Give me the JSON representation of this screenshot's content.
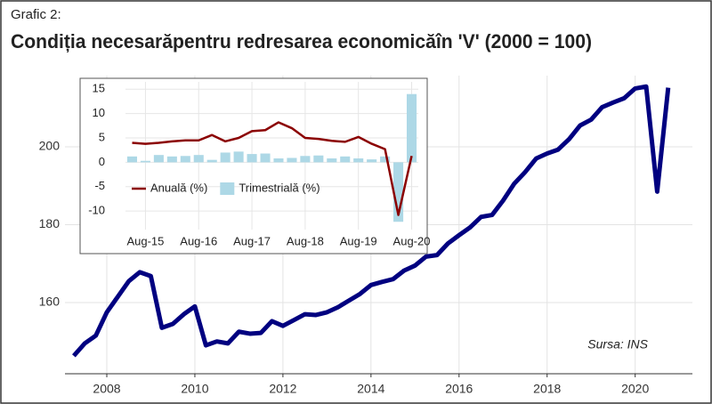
{
  "chart_data": [
    {
      "type": "line",
      "supertitle": "Grafic 2:",
      "title": "Condiția necesarăpentru redresarea economicăîn 'V' (2000 = 100)",
      "note": "Sursa: INS",
      "x": [
        2007.25,
        2007.5,
        2007.75,
        2008,
        2008.25,
        2008.5,
        2008.75,
        2009,
        2009.25,
        2009.5,
        2009.75,
        2010,
        2010.25,
        2010.5,
        2010.75,
        2011,
        2011.25,
        2011.5,
        2011.75,
        2012,
        2012.25,
        2012.5,
        2012.75,
        2013,
        2013.25,
        2013.5,
        2013.75,
        2014,
        2014.25,
        2014.5,
        2014.75,
        2015,
        2015.25,
        2015.5,
        2015.75,
        2016,
        2016.25,
        2016.5,
        2016.75,
        2017,
        2017.25,
        2017.5,
        2017.75,
        2018,
        2018.25,
        2018.5,
        2018.75,
        2019,
        2019.25,
        2019.5,
        2019.75,
        2020,
        2020.25,
        2020.5,
        2020.75
      ],
      "values": [
        146.3,
        149.5,
        151.5,
        157.5,
        161.5,
        165.5,
        167.8,
        166.8,
        153.5,
        154.5,
        157.0,
        159.0,
        149.0,
        150.0,
        149.5,
        152.5,
        152.0,
        152.2,
        155.2,
        154.0,
        155.5,
        157.0,
        156.8,
        157.5,
        158.8,
        160.5,
        162.2,
        164.5,
        165.3,
        166.0,
        168.2,
        169.5,
        171.8,
        172.2,
        175.2,
        177.3,
        179.3,
        182.0,
        182.5,
        186.2,
        190.5,
        193.5,
        197.0,
        198.3,
        199.3,
        202.0,
        205.5,
        207.0,
        210.2,
        211.4,
        212.5,
        215.0,
        215.5,
        188.5,
        215.2
      ],
      "color": "#000080",
      "xlim": [
        2007.05,
        2021.3
      ],
      "xticks": [
        2008,
        2010,
        2012,
        2014,
        2016,
        2018,
        2020
      ],
      "ylim": [
        141.7,
        218.3
      ],
      "yticks": [
        160,
        180,
        200
      ],
      "grid": true
    },
    {
      "type": "bar",
      "categories": [
        null,
        "Aug-15",
        null,
        null,
        null,
        "Aug-16",
        null,
        null,
        null,
        "Aug-17",
        null,
        null,
        null,
        "Aug-18",
        null,
        null,
        null,
        "Aug-19",
        null,
        null,
        null,
        "Aug-20"
      ],
      "series": [
        {
          "name": "Anuală (%)",
          "type": "line",
          "color": "#8b0000",
          "values": [
            4.0,
            3.8,
            4.0,
            4.3,
            4.5,
            4.5,
            5.6,
            4.3,
            5.0,
            6.4,
            6.6,
            8.2,
            7.0,
            5.0,
            4.8,
            4.4,
            4.2,
            5.2,
            3.8,
            2.7,
            -10.8,
            1.3
          ]
        },
        {
          "name": "Trimestrială (%)",
          "type": "bar",
          "color": "#add8e6",
          "values": [
            1.2,
            0.3,
            1.5,
            1.2,
            1.3,
            1.5,
            0.5,
            2.0,
            2.2,
            1.7,
            1.8,
            0.8,
            0.9,
            1.3,
            1.4,
            0.8,
            1.2,
            0.8,
            0.6,
            1.2,
            -12.2,
            14.0
          ]
        }
      ],
      "ylim": [
        -13.8,
        16.5
      ],
      "yticks": [
        -10,
        -5,
        0,
        5,
        10,
        15
      ],
      "grid": true,
      "legend": "bottom-left"
    }
  ]
}
